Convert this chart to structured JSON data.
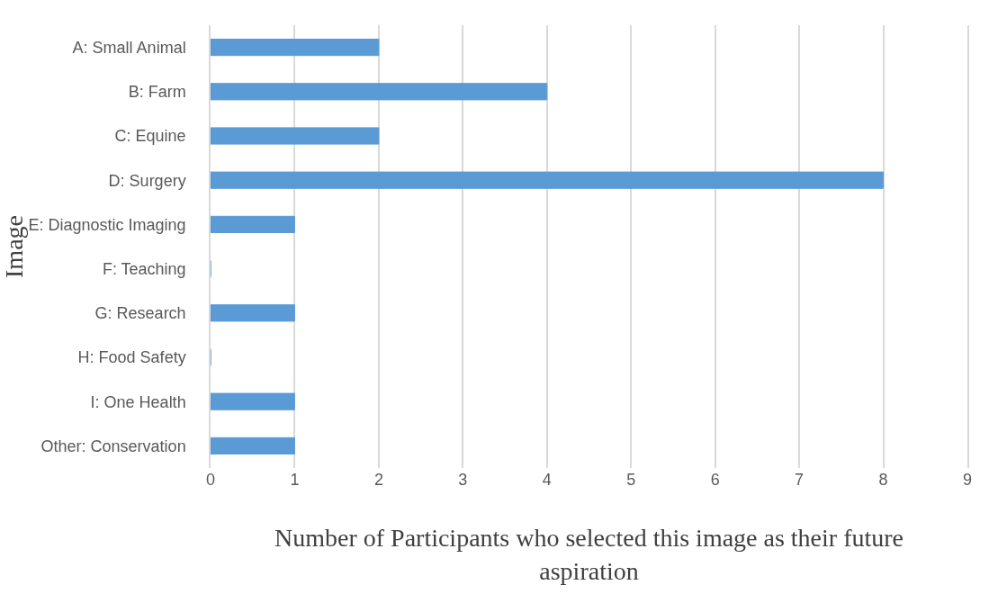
{
  "chart_data": {
    "type": "bar",
    "orientation": "horizontal",
    "xlabel": "Number of Participants who selected this image as their future aspiration",
    "ylabel": "Image",
    "categories": [
      "A: Small Animal",
      "B: Farm",
      "C: Equine",
      "D: Surgery",
      "E: Diagnostic Imaging",
      "F: Teaching",
      "G: Research",
      "H: Food Safety",
      "I: One Health",
      "Other: Conservation"
    ],
    "values": [
      2,
      4,
      2,
      8,
      1,
      0,
      1,
      0,
      1,
      1
    ],
    "color": "#5b9bd5",
    "xlim": [
      0,
      9
    ],
    "xticks": [
      0,
      1,
      2,
      3,
      4,
      5,
      6,
      7,
      8,
      9
    ],
    "grid": "x"
  }
}
